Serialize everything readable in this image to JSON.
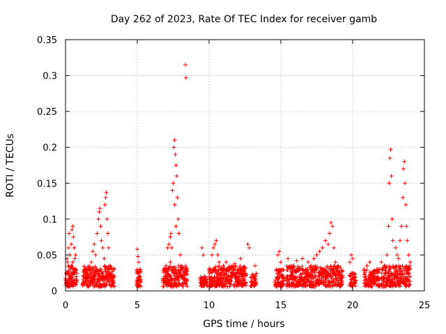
{
  "chart_data": {
    "type": "scatter",
    "title": "Day 262 of 2023, Rate Of TEC Index for receiver gamb",
    "xlabel": "GPS time / hours",
    "ylabel": "ROTI / TECUs",
    "xlim": [
      0,
      25
    ],
    "ylim": [
      0,
      0.35
    ],
    "xticks": [
      0,
      5,
      10,
      15,
      20,
      25
    ],
    "xtick_labels": [
      "0",
      "5",
      "10",
      "15",
      "20",
      "25"
    ],
    "yticks": [
      0,
      0.05,
      0.1,
      0.15,
      0.2,
      0.25,
      0.3,
      0.35
    ],
    "ytick_labels": [
      "0",
      "0.05",
      "0.1",
      "0.15",
      "0.2",
      "0.25",
      "0.3",
      "0.35"
    ],
    "grid": true,
    "marker": "plus",
    "marker_color": "#ff0000",
    "series": [
      {
        "name": "ROTI",
        "points": [
          [
            0.05,
            0.012
          ],
          [
            0.1,
            0.025
          ],
          [
            0.15,
            0.04
          ],
          [
            0.2,
            0.06
          ],
          [
            0.25,
            0.08
          ],
          [
            0.3,
            0.05
          ],
          [
            0.35,
            0.03
          ],
          [
            0.4,
            0.065
          ],
          [
            0.45,
            0.085
          ],
          [
            0.5,
            0.09
          ],
          [
            0.55,
            0.075
          ],
          [
            0.6,
            0.06
          ],
          [
            0.65,
            0.045
          ],
          [
            0.7,
            0.03
          ],
          [
            0.75,
            0.02
          ],
          [
            0.8,
            0.015
          ],
          [
            0.2,
            0.035
          ],
          [
            0.3,
            0.02
          ],
          [
            0.5,
            0.04
          ],
          [
            0.6,
            0.025
          ],
          [
            0.1,
            0.045
          ],
          [
            0.4,
            0.035
          ],
          [
            0.7,
            0.05
          ],
          [
            1.2,
            0.01
          ],
          [
            1.3,
            0.018
          ],
          [
            1.4,
            0.03
          ],
          [
            1.5,
            0.022
          ],
          [
            1.6,
            0.015
          ],
          [
            1.7,
            0.028
          ],
          [
            1.8,
            0.04
          ],
          [
            1.9,
            0.055
          ],
          [
            2.0,
            0.065
          ],
          [
            2.1,
            0.05
          ],
          [
            2.2,
            0.08
          ],
          [
            2.3,
            0.1
          ],
          [
            2.35,
            0.11
          ],
          [
            2.4,
            0.115
          ],
          [
            2.45,
            0.09
          ],
          [
            2.5,
            0.07
          ],
          [
            2.6,
            0.06
          ],
          [
            2.7,
            0.045
          ],
          [
            2.75,
            0.12
          ],
          [
            2.8,
            0.13
          ],
          [
            2.85,
            0.137
          ],
          [
            2.9,
            0.1
          ],
          [
            2.95,
            0.08
          ],
          [
            3.0,
            0.06
          ],
          [
            3.1,
            0.035
          ],
          [
            3.2,
            0.02
          ],
          [
            3.3,
            0.015
          ],
          [
            1.5,
            0.012
          ],
          [
            1.8,
            0.025
          ],
          [
            2.2,
            0.03
          ],
          [
            2.6,
            0.025
          ],
          [
            3.0,
            0.018
          ],
          [
            2.0,
            0.012
          ],
          [
            2.4,
            0.02
          ],
          [
            2.8,
            0.03
          ],
          [
            5.0,
            0.058
          ],
          [
            5.05,
            0.048
          ],
          [
            5.1,
            0.04
          ],
          [
            5.15,
            0.03
          ],
          [
            5.2,
            0.02
          ],
          [
            5.25,
            0.012
          ],
          [
            4.95,
            0.025
          ],
          [
            5.0,
            0.015
          ],
          [
            5.1,
            0.008
          ],
          [
            6.8,
            0.012
          ],
          [
            6.9,
            0.02
          ],
          [
            7.0,
            0.035
          ],
          [
            7.1,
            0.06
          ],
          [
            7.2,
            0.065
          ],
          [
            7.3,
            0.075
          ],
          [
            7.35,
            0.08
          ],
          [
            7.4,
            0.06
          ],
          [
            7.5,
            0.15
          ],
          [
            7.55,
            0.2
          ],
          [
            7.6,
            0.21
          ],
          [
            7.65,
            0.19
          ],
          [
            7.7,
            0.175
          ],
          [
            7.75,
            0.16
          ],
          [
            7.8,
            0.13
          ],
          [
            7.85,
            0.1
          ],
          [
            7.9,
            0.08
          ],
          [
            8.0,
            0.05
          ],
          [
            8.1,
            0.03
          ],
          [
            8.2,
            0.02
          ],
          [
            8.3,
            0.015
          ],
          [
            8.35,
            0.315
          ],
          [
            8.4,
            0.297
          ],
          [
            8.45,
            0.028
          ],
          [
            8.5,
            0.015
          ],
          [
            7.0,
            0.02
          ],
          [
            7.2,
            0.03
          ],
          [
            7.45,
            0.14
          ],
          [
            7.6,
            0.12
          ],
          [
            7.7,
            0.09
          ],
          [
            7.3,
            0.04
          ],
          [
            9.5,
            0.06
          ],
          [
            9.6,
            0.05
          ],
          [
            9.7,
            0.02
          ],
          [
            9.8,
            0.012
          ],
          [
            10.0,
            0.02
          ],
          [
            10.1,
            0.03
          ],
          [
            10.2,
            0.05
          ],
          [
            10.3,
            0.06
          ],
          [
            10.4,
            0.065
          ],
          [
            10.5,
            0.07
          ],
          [
            10.6,
            0.05
          ],
          [
            10.7,
            0.04
          ],
          [
            10.8,
            0.03
          ],
          [
            10.9,
            0.025
          ],
          [
            11.0,
            0.035
          ],
          [
            11.2,
            0.04
          ],
          [
            11.4,
            0.03
          ],
          [
            11.6,
            0.025
          ],
          [
            11.8,
            0.038
          ],
          [
            12.0,
            0.02
          ],
          [
            12.2,
            0.045
          ],
          [
            12.4,
            0.015
          ],
          [
            12.7,
            0.065
          ],
          [
            12.8,
            0.06
          ],
          [
            13.0,
            0.02
          ],
          [
            13.2,
            0.035
          ],
          [
            10.2,
            0.015
          ],
          [
            10.6,
            0.02
          ],
          [
            11.0,
            0.018
          ],
          [
            11.5,
            0.015
          ],
          [
            12.0,
            0.03
          ],
          [
            13.1,
            0.012
          ],
          [
            14.6,
            0.012
          ],
          [
            14.7,
            0.03
          ],
          [
            14.8,
            0.05
          ],
          [
            14.9,
            0.055
          ],
          [
            15.0,
            0.04
          ],
          [
            15.1,
            0.02
          ],
          [
            15.5,
            0.045
          ],
          [
            15.7,
            0.02
          ],
          [
            15.9,
            0.035
          ],
          [
            16.1,
            0.042
          ],
          [
            16.3,
            0.03
          ],
          [
            16.5,
            0.045
          ],
          [
            16.7,
            0.02
          ],
          [
            16.9,
            0.04
          ],
          [
            17.1,
            0.035
          ],
          [
            17.3,
            0.045
          ],
          [
            17.5,
            0.05
          ],
          [
            17.7,
            0.055
          ],
          [
            17.9,
            0.06
          ],
          [
            18.1,
            0.07
          ],
          [
            18.3,
            0.065
          ],
          [
            18.4,
            0.08
          ],
          [
            18.5,
            0.095
          ],
          [
            18.6,
            0.09
          ],
          [
            18.7,
            0.06
          ],
          [
            18.8,
            0.04
          ],
          [
            19.0,
            0.035
          ],
          [
            19.2,
            0.02
          ],
          [
            15.3,
            0.015
          ],
          [
            16.0,
            0.018
          ],
          [
            17.0,
            0.02
          ],
          [
            18.0,
            0.025
          ],
          [
            18.9,
            0.015
          ],
          [
            19.8,
            0.04
          ],
          [
            19.9,
            0.05
          ],
          [
            20.0,
            0.045
          ],
          [
            20.1,
            0.02
          ],
          [
            20.8,
            0.03
          ],
          [
            21.0,
            0.035
          ],
          [
            21.2,
            0.04
          ],
          [
            21.4,
            0.025
          ],
          [
            21.8,
            0.03
          ],
          [
            22.0,
            0.04
          ],
          [
            22.2,
            0.035
          ],
          [
            22.4,
            0.05
          ],
          [
            22.5,
            0.09
          ],
          [
            22.55,
            0.15
          ],
          [
            22.6,
            0.185
          ],
          [
            22.65,
            0.197
          ],
          [
            22.7,
            0.16
          ],
          [
            22.75,
            0.1
          ],
          [
            22.8,
            0.07
          ],
          [
            23.0,
            0.06
          ],
          [
            23.1,
            0.05
          ],
          [
            23.2,
            0.045
          ],
          [
            23.3,
            0.07
          ],
          [
            23.4,
            0.09
          ],
          [
            23.5,
            0.13
          ],
          [
            23.55,
            0.17
          ],
          [
            23.6,
            0.18
          ],
          [
            23.65,
            0.15
          ],
          [
            23.7,
            0.12
          ],
          [
            23.75,
            0.09
          ],
          [
            23.8,
            0.07
          ],
          [
            23.9,
            0.05
          ],
          [
            24.0,
            0.04
          ],
          [
            20.2,
            0.015
          ],
          [
            21.0,
            0.015
          ],
          [
            22.0,
            0.018
          ],
          [
            23.0,
            0.02
          ],
          [
            23.8,
            0.025
          ],
          [
            24.0,
            0.02
          ]
        ]
      }
    ],
    "dense_clusters": [
      {
        "x_start": 0.0,
        "x_end": 0.8,
        "y_min": 0.006,
        "y_max": 0.035
      },
      {
        "x_start": 1.2,
        "x_end": 3.4,
        "y_min": 0.006,
        "y_max": 0.035
      },
      {
        "x_start": 4.95,
        "x_end": 5.25,
        "y_min": 0.006,
        "y_max": 0.03
      },
      {
        "x_start": 6.8,
        "x_end": 8.5,
        "y_min": 0.006,
        "y_max": 0.035
      },
      {
        "x_start": 9.4,
        "x_end": 9.9,
        "y_min": 0.006,
        "y_max": 0.02
      },
      {
        "x_start": 10.0,
        "x_end": 12.6,
        "y_min": 0.006,
        "y_max": 0.035
      },
      {
        "x_start": 12.9,
        "x_end": 13.3,
        "y_min": 0.006,
        "y_max": 0.025
      },
      {
        "x_start": 14.6,
        "x_end": 15.2,
        "y_min": 0.006,
        "y_max": 0.03
      },
      {
        "x_start": 15.4,
        "x_end": 19.3,
        "y_min": 0.006,
        "y_max": 0.035
      },
      {
        "x_start": 19.8,
        "x_end": 20.2,
        "y_min": 0.006,
        "y_max": 0.025
      },
      {
        "x_start": 20.8,
        "x_end": 21.9,
        "y_min": 0.006,
        "y_max": 0.03
      },
      {
        "x_start": 22.0,
        "x_end": 24.0,
        "y_min": 0.006,
        "y_max": 0.035
      }
    ]
  }
}
